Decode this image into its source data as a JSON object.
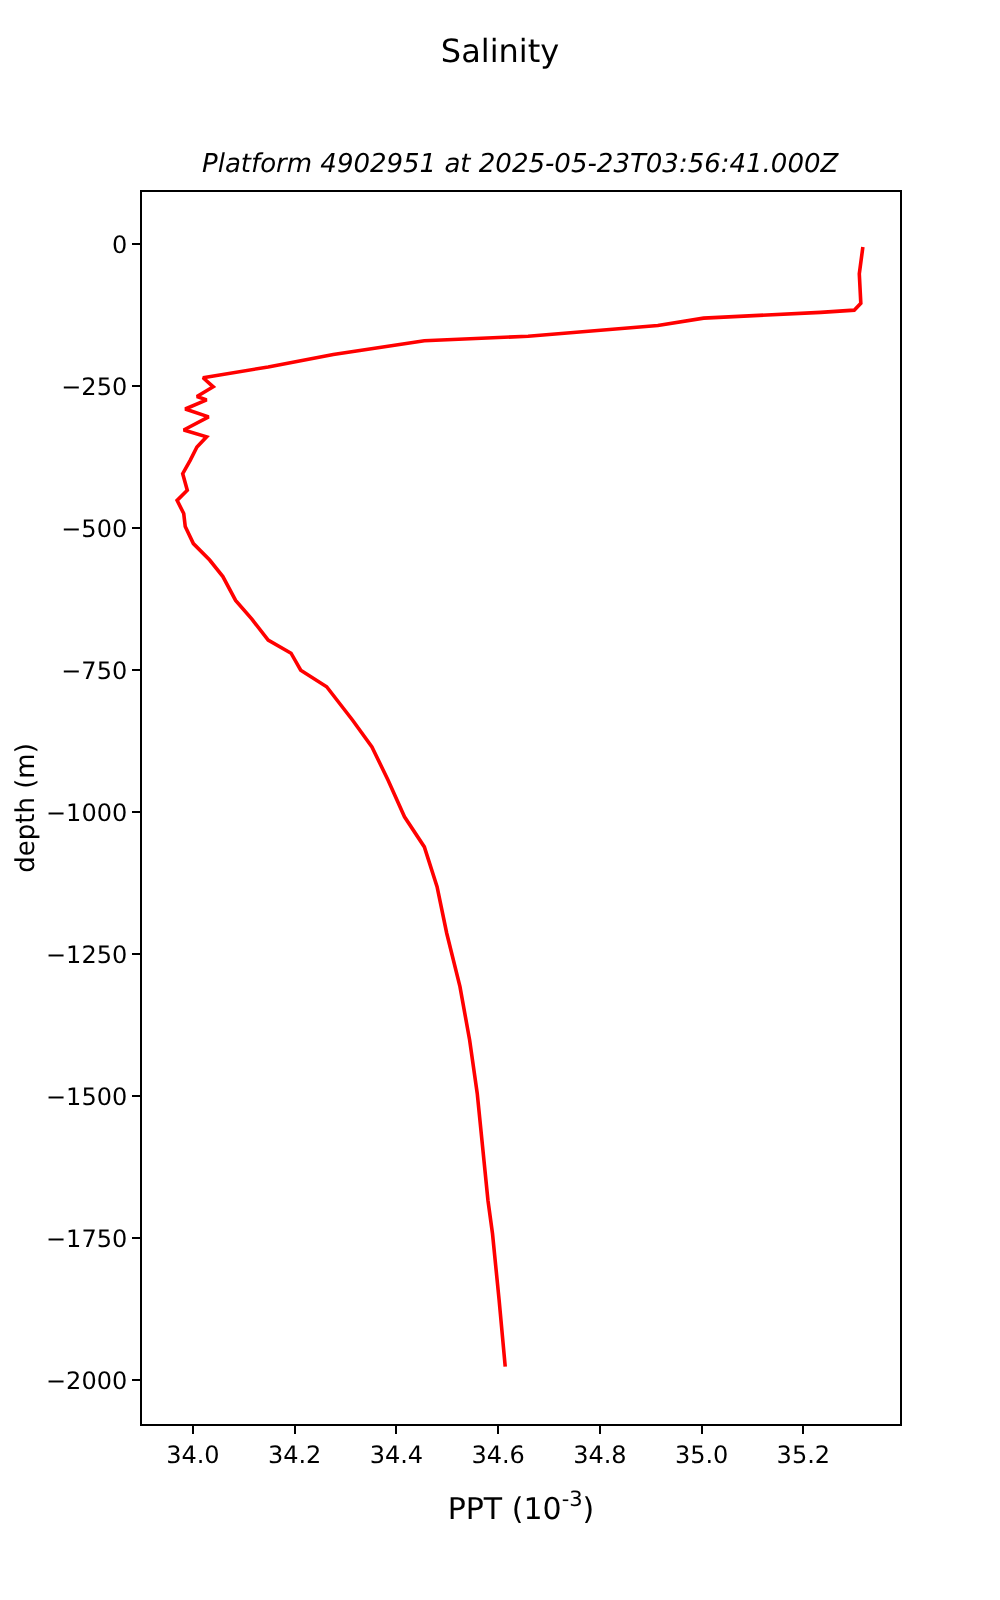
{
  "chart_data": {
    "type": "line",
    "title": "Salinity",
    "subtitle": "Platform 4902951 at 2025-05-23T03:56:41.000Z",
    "xlabel": "PPT (10$^{-3}$)",
    "ylabel": "depth (m)",
    "xlim": [
      33.9,
      35.39
    ],
    "ylim": [
      -2077,
      92
    ],
    "xticks": [
      {
        "value": 34.0,
        "label": "34.0"
      },
      {
        "value": 34.2,
        "label": "34.2"
      },
      {
        "value": 34.4,
        "label": "34.4"
      },
      {
        "value": 34.6,
        "label": "34.6"
      },
      {
        "value": 34.8,
        "label": "34.8"
      },
      {
        "value": 35.0,
        "label": "35.0"
      },
      {
        "value": 35.2,
        "label": "35.2"
      }
    ],
    "yticks": [
      0,
      {
        "value": -250,
        "label": "−250"
      },
      {
        "value": -500,
        "label": "−500"
      },
      {
        "value": -750,
        "label": "−750"
      },
      {
        "value": -1000,
        "label": "−1000"
      },
      {
        "value": -1250,
        "label": "−1250"
      },
      {
        "value": -1500,
        "label": "−1500"
      },
      {
        "value": -1750,
        "label": "−1750"
      },
      {
        "value": -2000,
        "label": "−2000"
      }
    ],
    "grid": false,
    "marker": "none",
    "line_style": "solid",
    "series": [
      {
        "color": "#ff0000",
        "x": [
          35.317,
          35.31,
          35.313,
          35.3,
          35.234,
          35.004,
          34.914,
          34.659,
          34.455,
          34.276,
          34.148,
          34.02,
          34.04,
          34.008,
          34.027,
          33.985,
          34.031,
          33.982,
          34.027,
          34.008,
          33.995,
          33.98,
          33.989,
          33.969,
          33.982,
          33.985,
          34.001,
          34.033,
          34.059,
          34.084,
          34.116,
          34.148,
          34.193,
          34.212,
          34.263,
          34.314,
          34.352,
          34.384,
          34.416,
          34.455,
          34.48,
          34.499,
          34.525,
          34.544,
          34.559,
          34.58,
          34.589,
          34.602,
          34.614
        ],
        "values": [
          -5,
          -52,
          -104,
          -116,
          -120,
          -130,
          -143,
          -162,
          -170,
          -194,
          -216,
          -235,
          -251,
          -268,
          -274,
          -290,
          -304,
          -327,
          -339,
          -357,
          -380,
          -404,
          -433,
          -451,
          -474,
          -497,
          -527,
          -556,
          -585,
          -627,
          -660,
          -697,
          -720,
          -750,
          -779,
          -838,
          -885,
          -944,
          -1008,
          -1061,
          -1131,
          -1213,
          -1307,
          -1401,
          -1495,
          -1683,
          -1742,
          -1859,
          -1976
        ]
      }
    ]
  }
}
